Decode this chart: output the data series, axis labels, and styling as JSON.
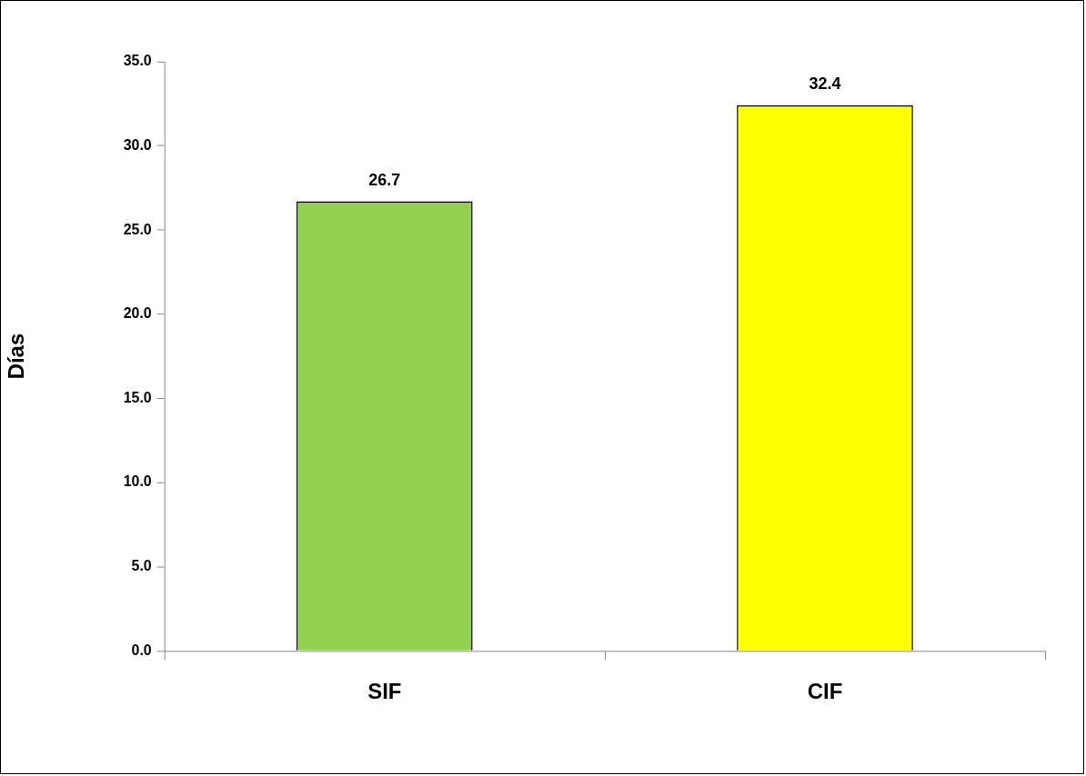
{
  "chart_data": {
    "type": "bar",
    "ylabel": "Días",
    "categories": [
      "SIF",
      "CIF"
    ],
    "values": [
      26.7,
      32.4
    ],
    "colors": [
      "#92d050",
      "#ffff00"
    ],
    "ylim": [
      0,
      35
    ],
    "yticks": [
      {
        "value": 0,
        "label": "0.0"
      },
      {
        "value": 5,
        "label": "5.0"
      },
      {
        "value": 10,
        "label": "10.0"
      },
      {
        "value": 15,
        "label": "15.0"
      },
      {
        "value": 20,
        "label": "20.0"
      },
      {
        "value": 25,
        "label": "25.0"
      },
      {
        "value": 30,
        "label": "30.0"
      },
      {
        "value": 35,
        "label": "35.0"
      }
    ],
    "grid": false,
    "legend": false,
    "data_labels": true
  }
}
